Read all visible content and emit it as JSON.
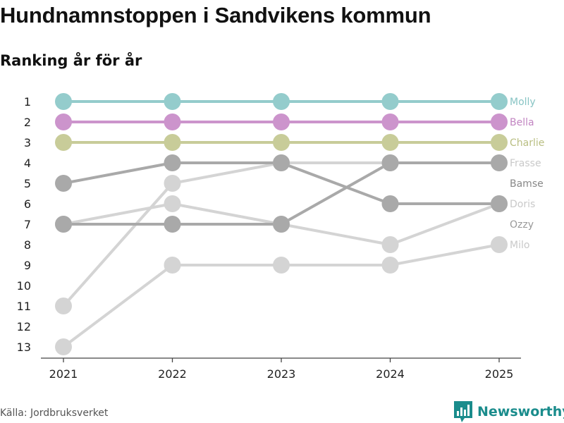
{
  "title": "Hundnamnstoppen i Sandvikens kommun",
  "subtitle": "Ranking år för år",
  "source": "Källa: Jordbruksverket",
  "brand": {
    "name": "Newsworthy",
    "color": "#1a8c8c",
    "icon": "newsworthy-logo-icon"
  },
  "chart_data": {
    "type": "line",
    "x": [
      2021,
      2022,
      2023,
      2024,
      2025
    ],
    "ylabels": [
      "1",
      "2",
      "3",
      "4",
      "5",
      "6",
      "7",
      "8",
      "9",
      "10",
      "11",
      "12",
      "13"
    ],
    "ylim": [
      1,
      13
    ],
    "yinverted": true,
    "grid": false,
    "series": [
      {
        "name": "Milo",
        "values": [
          13,
          9,
          9,
          9,
          8
        ],
        "color": "#d4d4d4",
        "label_color": "#c9c9c9"
      },
      {
        "name": "Ozzy",
        "values": [
          11,
          5,
          4,
          4,
          null
        ],
        "color": "#d4d4d4",
        "label_color": "#999999"
      },
      {
        "name": "Doris",
        "values": [
          7,
          6,
          7,
          8,
          6
        ],
        "color": "#d4d4d4",
        "label_color": "#c9c9c9"
      },
      {
        "name": "Frasse",
        "values": [
          7,
          7,
          7,
          4,
          4
        ],
        "color": "#a9a9a9",
        "label_color": "#c9c9c9"
      },
      {
        "name": "Bamse",
        "values": [
          5,
          4,
          4,
          6,
          6
        ],
        "color": "#a9a9a9",
        "label_color": "#888888"
      },
      {
        "name": "Charlie",
        "values": [
          3,
          3,
          3,
          3,
          3
        ],
        "color": "#c8cc99",
        "label_color": "#b9be82"
      },
      {
        "name": "Bella",
        "values": [
          2,
          2,
          2,
          2,
          2
        ],
        "color": "#cc94cc",
        "label_color": "#c285c2"
      },
      {
        "name": "Molly",
        "values": [
          1,
          1,
          1,
          1,
          1
        ],
        "color": "#94cccc",
        "label_color": "#88c4c4"
      }
    ],
    "end_labels": [
      {
        "name": "Molly",
        "rank": 1
      },
      {
        "name": "Bella",
        "rank": 2
      },
      {
        "name": "Charlie",
        "rank": 3
      },
      {
        "name": "Frasse",
        "rank": 4
      },
      {
        "name": "Bamse",
        "rank": 5
      },
      {
        "name": "Doris",
        "rank": 6
      },
      {
        "name": "Ozzy",
        "rank": 7
      },
      {
        "name": "Milo",
        "rank": 8
      }
    ]
  }
}
